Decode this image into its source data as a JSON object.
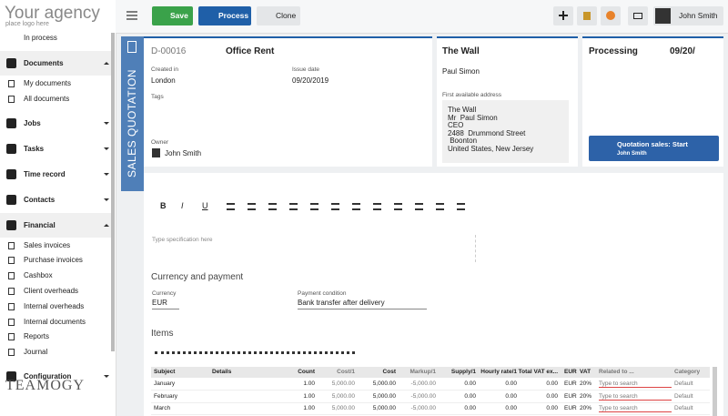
{
  "sidebar": {
    "logo": "Your agency",
    "logo_sub": "place logo here",
    "top_item": "In process",
    "sections": [
      {
        "label": "Documents",
        "items": [
          "My documents",
          "All documents"
        ]
      },
      {
        "label": "Jobs"
      },
      {
        "label": "Tasks"
      },
      {
        "label": "Time record"
      },
      {
        "label": "Contacts"
      },
      {
        "label": "Financial",
        "items": [
          "Sales invoices",
          "Purchase invoices",
          "Cashbox",
          "Client overheads",
          "Internal overheads",
          "Internal documents",
          "Reports",
          "Journal"
        ]
      },
      {
        "label": "Configuration"
      }
    ],
    "brand": "TEAMOGY"
  },
  "toolbar": {
    "save": "Save",
    "process": "Process",
    "clone": "Clone",
    "user": "John Smith"
  },
  "doc_type": "SALES QUOTATION",
  "card_main": {
    "number": "D-00016",
    "title": "Office Rent",
    "created_label": "Created in",
    "created": "London",
    "issue_label": "Issue date",
    "issue": "09/20/2019",
    "tags_label": "Tags",
    "owner_label": "Owner",
    "owner": "John Smith"
  },
  "card_client": {
    "title": "The Wall",
    "contact": "Paul Simon",
    "address_label": "First available address",
    "address": [
      "The Wall",
      "Mr  Paul Simon",
      "CEO",
      "2488  Drummond Street",
      " Boonton",
      "United States, New Jersey"
    ]
  },
  "card_status": {
    "title": "Processing",
    "date": "09/20/",
    "action": "Quotation sales: Start",
    "action_user": "John Smith"
  },
  "editor": {
    "tools": [
      "B",
      "I",
      "U"
    ],
    "placeholder": "Type specification here"
  },
  "payment": {
    "title": "Currency and payment",
    "currency_label": "Currency",
    "currency": "EUR",
    "condition_label": "Payment condition",
    "condition": "Bank transfer after delivery"
  },
  "items": {
    "title": "Items",
    "headers": [
      "Subject",
      "Details",
      "Count",
      "Cost/1",
      "Cost",
      "Markup/1",
      "Supply/1",
      "Hourly rate/1",
      "Total VAT ex...",
      "EUR",
      "VAT",
      "Related to ...",
      "Category"
    ],
    "rows": [
      {
        "subject": "January",
        "count": "1.00",
        "cost_unit": "5,000.00",
        "cost": "5,000.00",
        "markup": "-5,000.00",
        "supply": "0.00",
        "hourly": "0.00",
        "total": "0.00",
        "currency": "EUR",
        "vat": "20%",
        "related": "Type to search",
        "category": "Default"
      },
      {
        "subject": "February",
        "count": "1.00",
        "cost_unit": "5,000.00",
        "cost": "5,000.00",
        "markup": "-5,000.00",
        "supply": "0.00",
        "hourly": "0.00",
        "total": "0.00",
        "currency": "EUR",
        "vat": "20%",
        "related": "Type to search",
        "category": "Default"
      },
      {
        "subject": "March",
        "count": "1.00",
        "cost_unit": "5,000.00",
        "cost": "5,000.00",
        "markup": "-5,000.00",
        "supply": "0.00",
        "hourly": "0.00",
        "total": "0.00",
        "currency": "EUR",
        "vat": "20%",
        "related": "Type to search",
        "category": "Default"
      }
    ]
  }
}
